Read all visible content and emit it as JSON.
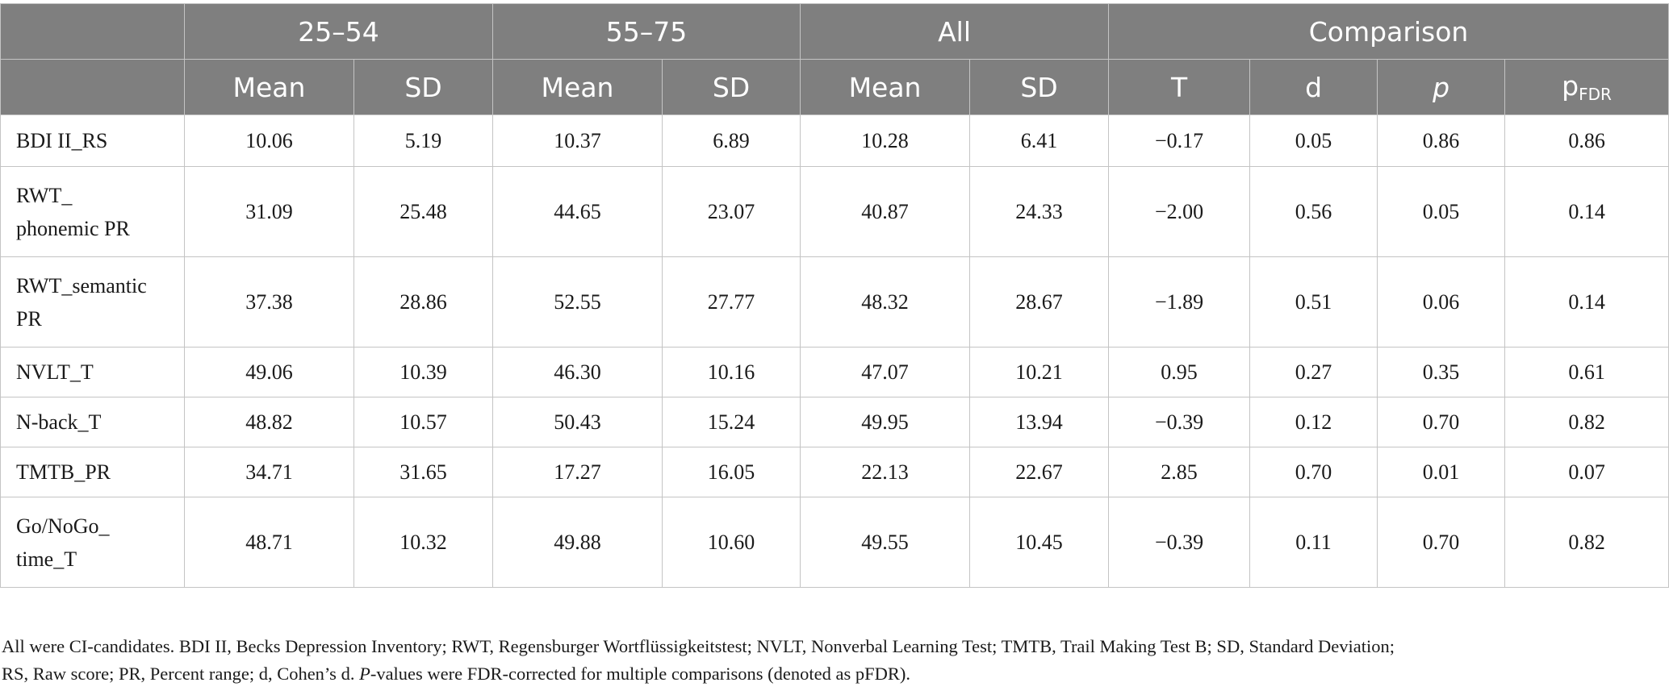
{
  "table": {
    "groups": [
      "",
      "25–54",
      "55–75",
      "All",
      "Comparison"
    ],
    "subheaders": {
      "g1_mean": "Mean",
      "g1_sd": "SD",
      "g2_mean": "Mean",
      "g2_sd": "SD",
      "all_mean": "Mean",
      "all_sd": "SD",
      "t": "T",
      "d": "d",
      "p": "p",
      "pfdr_main": "p",
      "pfdr_sub": "FDR"
    },
    "rows": [
      {
        "label": "BDI II_RS",
        "g1_mean": "10.06",
        "g1_sd": "5.19",
        "g2_mean": "10.37",
        "g2_sd": "6.89",
        "all_mean": "10.28",
        "all_sd": "6.41",
        "t": "−0.17",
        "d": "0.05",
        "p": "0.86",
        "pfdr": "0.86"
      },
      {
        "label_line1": "RWT_",
        "label_line2": "phonemic PR",
        "g1_mean": "31.09",
        "g1_sd": "25.48",
        "g2_mean": "44.65",
        "g2_sd": "23.07",
        "all_mean": "40.87",
        "all_sd": "24.33",
        "t": "−2.00",
        "d": "0.56",
        "p": "0.05",
        "pfdr": "0.14"
      },
      {
        "label_line1": "RWT_semantic",
        "label_line2": "PR",
        "g1_mean": "37.38",
        "g1_sd": "28.86",
        "g2_mean": "52.55",
        "g2_sd": "27.77",
        "all_mean": "48.32",
        "all_sd": "28.67",
        "t": "−1.89",
        "d": "0.51",
        "p": "0.06",
        "pfdr": "0.14"
      },
      {
        "label": "NVLT_T",
        "g1_mean": "49.06",
        "g1_sd": "10.39",
        "g2_mean": "46.30",
        "g2_sd": "10.16",
        "all_mean": "47.07",
        "all_sd": "10.21",
        "t": "0.95",
        "d": "0.27",
        "p": "0.35",
        "pfdr": "0.61"
      },
      {
        "label": "N-back_T",
        "g1_mean": "48.82",
        "g1_sd": "10.57",
        "g2_mean": "50.43",
        "g2_sd": "15.24",
        "all_mean": "49.95",
        "all_sd": "13.94",
        "t": "−0.39",
        "d": "0.12",
        "p": "0.70",
        "pfdr": "0.82"
      },
      {
        "label": "TMTB_PR",
        "g1_mean": "34.71",
        "g1_sd": "31.65",
        "g2_mean": "17.27",
        "g2_sd": "16.05",
        "all_mean": "22.13",
        "all_sd": "22.67",
        "t": "2.85",
        "d": "0.70",
        "p": "0.01",
        "pfdr": "0.07"
      },
      {
        "label_line1": "Go/NoGo_",
        "label_line2": "time_T",
        "g1_mean": "48.71",
        "g1_sd": "10.32",
        "g2_mean": "49.88",
        "g2_sd": "10.60",
        "all_mean": "49.55",
        "all_sd": "10.45",
        "t": "−0.39",
        "d": "0.11",
        "p": "0.70",
        "pfdr": "0.82"
      }
    ]
  },
  "footnote": {
    "line1": "All were CI-candidates. BDI II, Becks Depression Inventory; RWT, Regensburger Wortflüssigkeitstest; NVLT, Nonverbal Learning Test; TMTB, Trail Making Test B; SD, Standard Deviation;",
    "line2_a": "RS, Raw score; PR, Percent range; d, Cohen’s d. ",
    "line2_italic": "P",
    "line2_b": "-values were FDR-corrected for multiple comparisons (denoted as pFDR)."
  }
}
